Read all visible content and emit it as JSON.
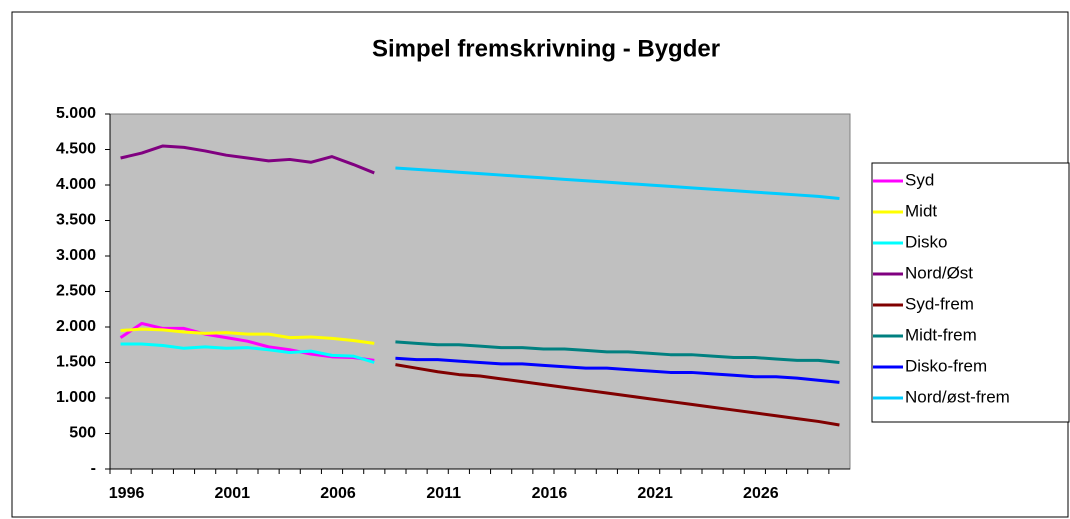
{
  "chart_data": {
    "type": "line",
    "title": "Simpel fremskrivning - Bygder",
    "categories": [
      1996,
      null,
      null,
      null,
      null,
      2001,
      null,
      null,
      null,
      null,
      2006,
      null,
      null,
      null,
      null,
      2011,
      null,
      null,
      null,
      null,
      2016,
      null,
      null,
      null,
      null,
      2021,
      null,
      null,
      null,
      null,
      2026,
      null,
      null,
      null,
      null
    ],
    "series": [
      {
        "name": "Syd",
        "color": "#ff00ff",
        "values": [
          1850,
          2050,
          1980,
          1980,
          1900,
          1850,
          1800,
          1720,
          1680,
          1620,
          1580,
          1570,
          1530,
          null,
          null,
          null,
          null,
          null,
          null,
          null,
          null,
          null,
          null,
          null,
          null,
          null,
          null,
          null,
          null,
          null,
          null,
          null,
          null,
          null,
          null
        ]
      },
      {
        "name": "Midt",
        "color": "#ffff00",
        "values": [
          1950,
          1970,
          1960,
          1930,
          1910,
          1920,
          1900,
          1900,
          1850,
          1860,
          1840,
          1810,
          1770,
          null,
          null,
          null,
          null,
          null,
          null,
          null,
          null,
          null,
          null,
          null,
          null,
          null,
          null,
          null,
          null,
          null,
          null,
          null,
          null,
          null,
          null
        ]
      },
      {
        "name": "Disko",
        "color": "#00ffff",
        "values": [
          1760,
          1760,
          1740,
          1700,
          1720,
          1700,
          1710,
          1680,
          1640,
          1660,
          1600,
          1590,
          1500,
          null,
          null,
          null,
          null,
          null,
          null,
          null,
          null,
          null,
          null,
          null,
          null,
          null,
          null,
          null,
          null,
          null,
          null,
          null,
          null,
          null,
          null
        ]
      },
      {
        "name": "Nord/Øst",
        "color": "#800080",
        "values": [
          4380,
          4450,
          4550,
          4530,
          4480,
          4420,
          4380,
          4340,
          4360,
          4320,
          4400,
          4290,
          4170,
          null,
          null,
          null,
          null,
          null,
          null,
          null,
          null,
          null,
          null,
          null,
          null,
          null,
          null,
          null,
          null,
          null,
          null,
          null,
          null,
          null,
          null
        ]
      },
      {
        "name": "Syd-frem",
        "color": "#800000",
        "values": [
          null,
          null,
          null,
          null,
          null,
          null,
          null,
          null,
          null,
          null,
          null,
          null,
          null,
          1470,
          1420,
          1370,
          1330,
          1310,
          1270,
          1230,
          1190,
          1150,
          1110,
          1070,
          1030,
          990,
          950,
          910,
          870,
          830,
          790,
          750,
          710,
          670,
          620
        ]
      },
      {
        "name": "Midt-frem",
        "color": "#008080",
        "values": [
          null,
          null,
          null,
          null,
          null,
          null,
          null,
          null,
          null,
          null,
          null,
          null,
          null,
          1790,
          1770,
          1750,
          1750,
          1730,
          1710,
          1710,
          1690,
          1690,
          1670,
          1650,
          1650,
          1630,
          1610,
          1610,
          1590,
          1570,
          1570,
          1550,
          1530,
          1530,
          1500
        ]
      },
      {
        "name": "Disko-frem",
        "color": "#0000ff",
        "values": [
          null,
          null,
          null,
          null,
          null,
          null,
          null,
          null,
          null,
          null,
          null,
          null,
          null,
          1560,
          1540,
          1540,
          1520,
          1500,
          1480,
          1480,
          1460,
          1440,
          1420,
          1420,
          1400,
          1380,
          1360,
          1360,
          1340,
          1320,
          1300,
          1300,
          1280,
          1250,
          1220
        ]
      },
      {
        "name": "Nord/øst-frem",
        "color": "#00ccff",
        "values": [
          null,
          null,
          null,
          null,
          null,
          null,
          null,
          null,
          null,
          null,
          null,
          null,
          null,
          4240,
          4220,
          4200,
          4180,
          4160,
          4140,
          4120,
          4100,
          4080,
          4060,
          4040,
          4020,
          4000,
          3980,
          3960,
          3940,
          3920,
          3900,
          3880,
          3860,
          3840,
          3810
        ]
      }
    ],
    "ylim": [
      0,
      5000
    ],
    "yticks": [
      {
        "value": 0,
        "label": "-"
      },
      500,
      {
        "value": 1000,
        "label": "1.000"
      },
      {
        "value": 1500,
        "label": "1.500"
      },
      {
        "value": 2000,
        "label": "2.000"
      },
      {
        "value": 2500,
        "label": "2.500"
      },
      {
        "value": 3000,
        "label": "3.000"
      },
      {
        "value": 3500,
        "label": "3.500"
      },
      {
        "value": 4000,
        "label": "4.000"
      },
      {
        "value": 4500,
        "label": "4.500"
      },
      {
        "value": 5000,
        "label": "5.000"
      }
    ],
    "legend": "right",
    "plot_background": "#c0c0c0"
  }
}
